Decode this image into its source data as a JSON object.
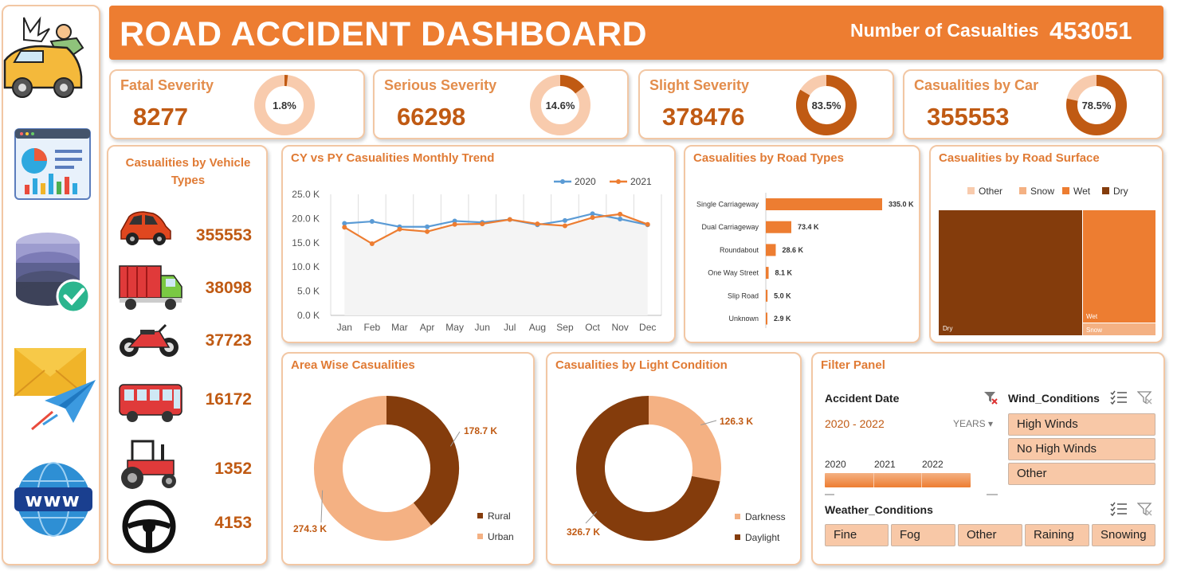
{
  "header": {
    "title": "ROAD ACCIDENT DASHBOARD",
    "total_label": "Number of Casualties",
    "total_value": "453051"
  },
  "kpis": [
    {
      "title": "Fatal Severity",
      "value": "8277",
      "pct_label": "1.8%",
      "pct": 1.8
    },
    {
      "title": "Serious Severity",
      "value": "66298",
      "pct_label": "14.6%",
      "pct": 14.6
    },
    {
      "title": "Slight Severity",
      "value": "378476",
      "pct_label": "83.5%",
      "pct": 83.5
    },
    {
      "title": "Casualities by Car",
      "value": "355553",
      "pct_label": "78.5%",
      "pct": 78.5
    }
  ],
  "vehicles": {
    "title": "Casualities by Vehicle Types",
    "items": [
      {
        "icon": "car-icon",
        "value": "355553"
      },
      {
        "icon": "truck-icon",
        "value": "38098"
      },
      {
        "icon": "motorbike-icon",
        "value": "37723"
      },
      {
        "icon": "bus-icon",
        "value": "16172"
      },
      {
        "icon": "tractor-icon",
        "value": "1352"
      },
      {
        "icon": "steering-wheel-icon",
        "value": "4153"
      }
    ]
  },
  "colors": {
    "accent": "#ed7d31",
    "dark": "#843c0c",
    "light": "#f4b183",
    "pale": "#f8cbad",
    "blue": "#5b9bd5"
  },
  "chart_data": [
    {
      "id": "trend",
      "type": "line",
      "title": "CY vs PY Casualities Monthly Trend",
      "categories": [
        "Jan",
        "Feb",
        "Mar",
        "Apr",
        "May",
        "Jun",
        "Jul",
        "Aug",
        "Sep",
        "Oct",
        "Nov",
        "Dec"
      ],
      "series": [
        {
          "name": "2020",
          "color": "#5b9bd5",
          "values": [
            19.0,
            19.4,
            18.3,
            18.3,
            19.5,
            19.2,
            19.8,
            18.7,
            19.6,
            21.0,
            19.9,
            18.7
          ]
        },
        {
          "name": "2021",
          "color": "#ed7d31",
          "values": [
            18.2,
            14.8,
            17.8,
            17.3,
            18.8,
            18.9,
            19.8,
            18.9,
            18.5,
            20.2,
            20.9,
            18.8
          ]
        }
      ],
      "yticks": [
        "0.0 K",
        "5.0 K",
        "10.0 K",
        "15.0 K",
        "20.0 K",
        "25.0 K"
      ],
      "ylim": [
        0,
        25
      ]
    },
    {
      "id": "road_types",
      "type": "bar",
      "title": "Casualities by Road Types",
      "categories": [
        "Single Carriageway",
        "Dual Carriageway",
        "Roundabout",
        "One Way Street",
        "Slip Road",
        "Unknown"
      ],
      "values": [
        335.0,
        73.4,
        28.6,
        8.1,
        5.0,
        2.9
      ],
      "labels": [
        "335.0 K",
        "73.4 K",
        "28.6 K",
        "8.1 K",
        "5.0 K",
        "2.9 K"
      ]
    },
    {
      "id": "road_surface",
      "type": "treemap",
      "title": "Casualities by Road Surface",
      "legend": [
        {
          "name": "Other",
          "color": "#f8cbad"
        },
        {
          "name": "Snow",
          "color": "#f4b183"
        },
        {
          "name": "Wet",
          "color": "#ed7d31"
        },
        {
          "name": "Dry",
          "color": "#843c0c"
        }
      ],
      "tiles": [
        "Dry",
        "Wet",
        "Snow"
      ]
    },
    {
      "id": "area",
      "type": "pie",
      "title": "Area Wise Casualities",
      "slices": [
        {
          "name": "Rural",
          "value": 178.7,
          "label": "178.7 K",
          "color": "#843c0c"
        },
        {
          "name": "Urban",
          "value": 274.3,
          "label": "274.3 K",
          "color": "#f4b183"
        }
      ]
    },
    {
      "id": "light",
      "type": "pie",
      "title": "Casualities by Light Condition",
      "slices": [
        {
          "name": "Darkness",
          "value": 126.3,
          "label": "126.3 K",
          "color": "#f4b183"
        },
        {
          "name": "Daylight",
          "value": 326.7,
          "label": "326.7 K",
          "color": "#843c0c"
        }
      ]
    }
  ],
  "filter": {
    "title": "Filter Panel",
    "date_label": "Accident Date",
    "date_range": "2020 - 2022",
    "date_unit": "YEARS",
    "years": [
      "2020",
      "2021",
      "2022"
    ],
    "wind_label": "Wind_Conditions",
    "wind_items": [
      "High Winds",
      "No High Winds",
      "Other"
    ],
    "weather_label": "Weather_Conditions",
    "weather_items": [
      "Fine",
      "Fog",
      "Other",
      "Raining",
      "Snowing"
    ]
  }
}
